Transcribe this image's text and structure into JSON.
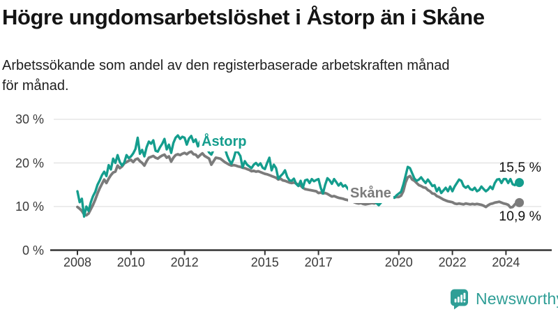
{
  "chart_data": {
    "type": "line",
    "title": "Högre ungdomsarbetslöshet i Åstorp än i Skåne",
    "subtitle_lines": [
      "Arbetssökande som andel av den registerbaserade arbetskraften månad",
      "för månad."
    ],
    "unit": "%",
    "x_start_year": 2008,
    "x_frequency": "monthly",
    "x_tick_years": [
      2008,
      2010,
      2012,
      2015,
      2017,
      2020,
      2022,
      2024
    ],
    "y_ticks": [
      {
        "value": 0,
        "label": "0 %"
      },
      {
        "value": 10,
        "label": "10 %"
      },
      {
        "value": 20,
        "label": "20 %"
      },
      {
        "value": 30,
        "label": "30 %"
      }
    ],
    "ylim": [
      0,
      33
    ],
    "grid": "horizontal",
    "legend_position": "inline-labels",
    "series": [
      {
        "name": "Åstorp",
        "color": "#149d8d",
        "end_value": 15.5,
        "end_label": "15,5 %",
        "values": [
          13.5,
          11.0,
          11.8,
          7.7,
          10.0,
          9.0,
          11.0,
          12.4,
          13.4,
          15.0,
          16.0,
          17.2,
          18.0,
          17.0,
          19.5,
          18.5,
          21.0,
          20.0,
          21.8,
          20.2,
          19.4,
          20.1,
          21.8,
          21.1,
          21.5,
          22.2,
          23.2,
          25.8,
          22.1,
          23.0,
          21.5,
          23.6,
          24.9,
          24.4,
          25.2,
          22.8,
          22.6,
          23.6,
          24.4,
          25.5,
          23.1,
          24.2,
          22.3,
          24.6,
          25.8,
          26.3,
          25.5,
          26.0,
          25.8,
          24.2,
          25.6,
          26.2,
          24.8,
          25.4,
          23.8,
          25.0,
          25.8,
          24.6,
          23.4,
          22.4,
          21.9,
          23.0,
          24.3,
          25.0,
          25.5,
          24.2,
          23.5,
          21.8,
          20.6,
          19.8,
          21.0,
          22.8,
          22.4,
          21.6,
          19.0,
          20.4,
          19.6,
          19.2,
          18.8,
          19.6,
          20.0,
          19.4,
          19.9,
          18.9,
          18.6,
          20.0,
          21.2,
          18.3,
          19.6,
          18.8,
          16.4,
          17.0,
          17.5,
          18.3,
          16.8,
          16.0,
          15.9,
          16.4,
          15.2,
          14.7,
          15.9,
          14.3,
          16.0,
          16.2,
          15.4,
          16.3,
          15.8,
          16.1,
          16.3,
          14.3,
          13.0,
          15.0,
          16.5,
          16.0,
          15.2,
          16.3,
          15.6,
          14.8,
          15.4,
          14.6,
          14.9,
          14.2,
          13.6,
          14.4,
          13.8,
          13.0,
          12.4,
          12.9,
          12.2,
          11.8,
          12.4,
          11.9,
          11.6,
          11.2,
          10.8,
          10.3,
          10.9,
          11.4,
          12.0,
          11.5,
          11.9,
          12.3,
          12.0,
          12.6,
          13.0,
          13.4,
          15.0,
          17.0,
          19.1,
          18.8,
          17.6,
          16.4,
          15.9,
          16.2,
          16.7,
          16.0,
          15.4,
          16.2,
          15.5,
          14.7,
          14.9,
          13.5,
          14.3,
          13.1,
          13.7,
          14.3,
          13.5,
          14.6,
          13.5,
          14.6,
          15.4,
          16.2,
          15.9,
          14.7,
          14.3,
          14.7,
          14.0,
          13.8,
          14.3,
          13.5,
          13.8,
          14.6,
          14.0,
          13.5,
          13.9,
          14.6,
          14.0,
          15.4,
          16.2,
          16.3,
          15.4,
          16.3,
          16.3,
          15.4,
          16.3,
          15.1,
          14.9,
          15.8,
          15.5
        ]
      },
      {
        "name": "Skåne",
        "color": "#7b7b7b",
        "end_value": 10.9,
        "end_label": "10,9 %",
        "values": [
          9.9,
          9.5,
          9.0,
          8.2,
          8.0,
          8.4,
          9.4,
          10.4,
          11.6,
          13.0,
          14.2,
          15.2,
          16.2,
          15.4,
          16.4,
          17.2,
          17.8,
          18.0,
          19.4,
          18.8,
          19.2,
          19.9,
          20.2,
          20.5,
          20.7,
          20.2,
          20.8,
          21.0,
          20.4,
          20.0,
          19.4,
          20.4,
          21.2,
          21.4,
          21.6,
          21.2,
          21.0,
          21.4,
          21.7,
          21.9,
          21.2,
          21.5,
          20.3,
          21.2,
          21.8,
          22.0,
          21.8,
          22.1,
          22.3,
          22.0,
          22.4,
          22.6,
          22.0,
          21.9,
          21.3,
          21.8,
          22.2,
          21.6,
          21.3,
          21.0,
          19.6,
          20.4,
          21.2,
          21.1,
          21.0,
          20.6,
          20.2,
          19.9,
          19.6,
          19.4,
          19.5,
          19.4,
          19.2,
          19.1,
          18.9,
          18.8,
          18.6,
          18.4,
          18.1,
          18.2,
          18.0,
          18.1,
          17.9,
          17.7,
          17.5,
          17.4,
          17.2,
          17.0,
          16.8,
          16.6,
          16.2,
          16.4,
          16.0,
          15.9,
          15.7,
          15.5,
          15.4,
          15.5,
          15.3,
          15.0,
          14.8,
          14.3,
          14.0,
          13.9,
          13.8,
          13.7,
          13.6,
          13.5,
          13.1,
          13.2,
          13.0,
          13.1,
          12.9,
          12.6,
          12.3,
          12.4,
          12.2,
          12.0,
          11.9,
          11.8,
          11.6,
          11.5,
          11.3,
          11.2,
          11.0,
          10.8,
          10.7,
          10.8,
          10.6,
          10.5,
          10.6,
          10.7,
          10.8,
          10.7,
          10.9,
          11.0,
          11.2,
          11.4,
          11.7,
          11.6,
          11.8,
          12.0,
          12.1,
          12.2,
          12.2,
          12.5,
          13.5,
          15.5,
          16.7,
          17.0,
          16.2,
          15.9,
          15.4,
          14.9,
          14.7,
          14.4,
          14.3,
          13.8,
          13.5,
          13.0,
          12.9,
          12.4,
          12.2,
          11.9,
          11.6,
          11.4,
          11.2,
          11.1,
          11.0,
          10.7,
          10.6,
          10.7,
          10.6,
          10.5,
          10.7,
          10.6,
          10.5,
          10.6,
          10.5,
          10.6,
          10.5,
          10.4,
          10.2,
          9.9,
          10.3,
          10.6,
          10.7,
          10.9,
          11.0,
          11.1,
          10.9,
          10.7,
          10.6,
          10.4,
          9.8,
          9.9,
          10.5,
          11.0,
          10.9
        ]
      }
    ]
  },
  "branding": {
    "logo_text": "Newsworthy",
    "logo_color": "#2f9e96"
  },
  "colors": {
    "astorp_line": "#149d8d",
    "skane_line": "#7b7b7b",
    "gridline": "#e0e0e0",
    "axis": "#333333"
  }
}
